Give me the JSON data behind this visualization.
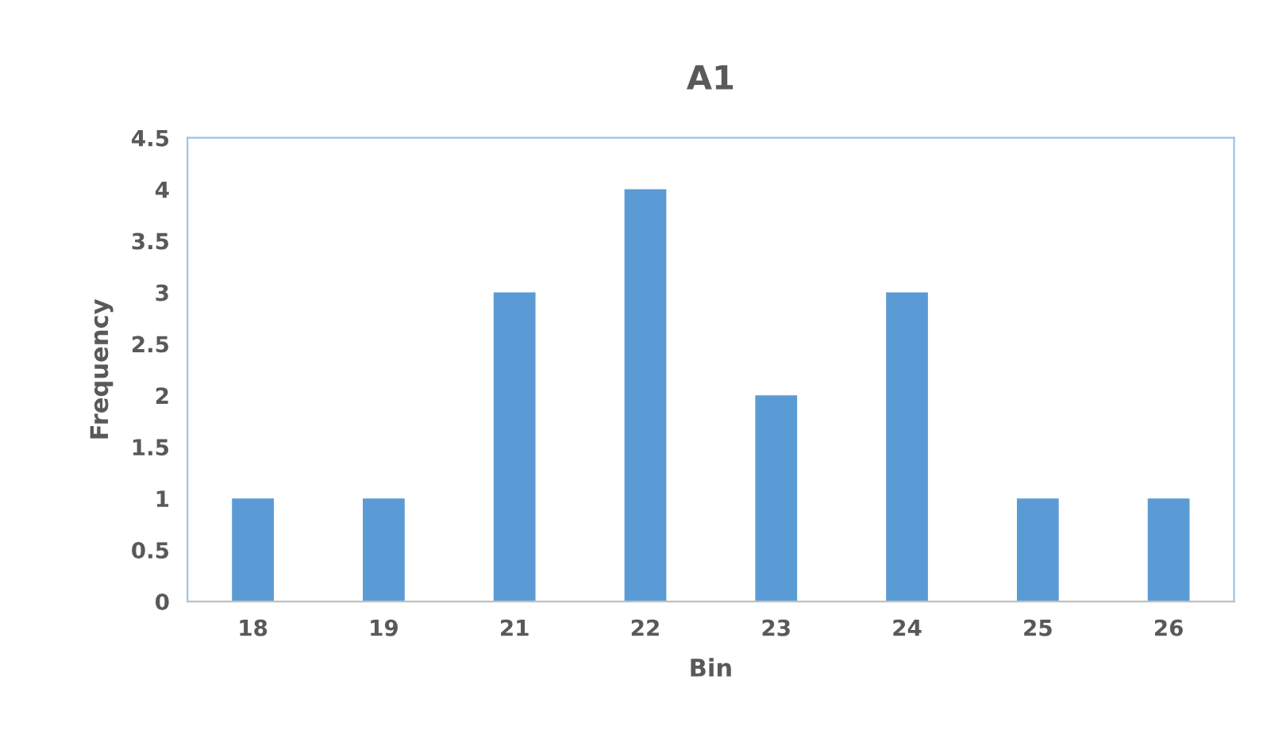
{
  "chart_data": {
    "type": "bar",
    "title": "A1",
    "xlabel": "Bin",
    "ylabel": "Frequency",
    "categories": [
      "18",
      "19",
      "21",
      "22",
      "23",
      "24",
      "25",
      "26"
    ],
    "values": [
      1,
      1,
      3,
      4,
      2,
      3,
      1,
      1
    ],
    "color": "#5b9bd5",
    "ylim": [
      0,
      4.5
    ],
    "yticks": [
      0,
      0.5,
      1,
      1.5,
      2,
      2.5,
      3,
      3.5,
      4,
      4.5
    ],
    "grid": false,
    "legend": false
  }
}
